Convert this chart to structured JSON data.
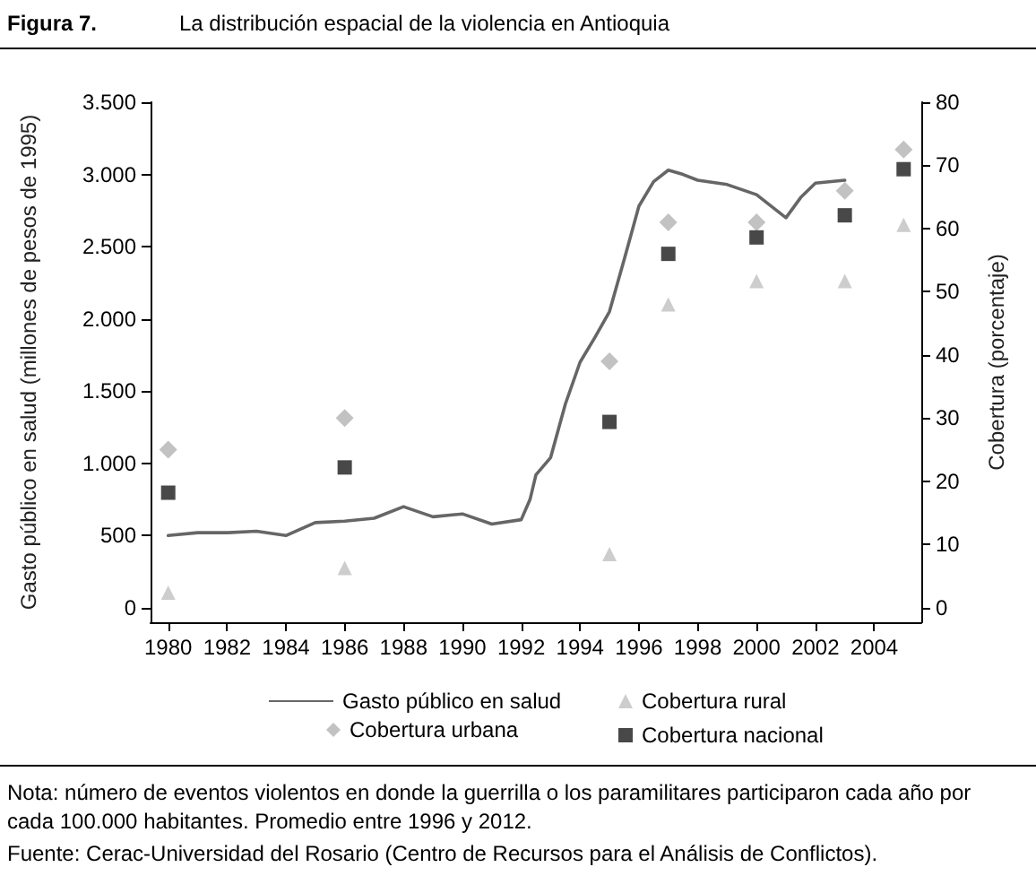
{
  "chart_data": {
    "type": "line",
    "title": "La distribución espacial de la violencia en Antioquia",
    "subtitle": "Figura 7.",
    "ylabel": "Gasto público en salud (millones de pesos de 1995)",
    "y2label": "Cobertura (porcentaje)",
    "annotations": [
      "Nota: número de eventos violentos en donde la guerrilla o los paramilitares participaron cada año por cada 100.000 habitantes. Promedio entre 1996 y 2012.",
      "Fuente: Cerac-Universidad del Rosario (Centro de Recursos para el Análisis de Conflictos)."
    ],
    "xlim": [
      1979.4,
      2005.6
    ],
    "xticks": [
      1980,
      1982,
      1984,
      1986,
      1988,
      1990,
      1992,
      1994,
      1996,
      1998,
      2000,
      2002,
      2004
    ],
    "ylim": [
      -100,
      3500
    ],
    "yticks": [
      {
        "value": 0,
        "label": "0"
      },
      {
        "value": 500,
        "label": "500"
      },
      {
        "value": 1000,
        "label": "1.000"
      },
      {
        "value": 1500,
        "label": "1.500"
      },
      {
        "value": 2000,
        "label": "2.000"
      },
      {
        "value": 2500,
        "label": "2.500"
      },
      {
        "value": 3000,
        "label": "3.000"
      },
      {
        "value": 3500,
        "label": "3.500"
      }
    ],
    "y2lim": [
      -2.3,
      80
    ],
    "y2ticks": [
      0,
      10,
      20,
      30,
      40,
      50,
      60,
      70,
      80
    ],
    "grid": false,
    "legend": "bottom",
    "series": [
      {
        "name": "Gasto público en salud",
        "marker": "none",
        "color": "#666666",
        "x": [
          1980,
          1981,
          1982,
          1983,
          1984,
          1985,
          1986,
          1987,
          1988,
          1989,
          1990,
          1991,
          1992,
          1992.3,
          1992.5,
          1993,
          1993.5,
          1994,
          1994.5,
          1995,
          1995.5,
          1996,
          1996.5,
          1997,
          1997.5,
          1998,
          1999,
          2000,
          2001,
          2001.5,
          2002,
          2003
        ],
        "values": [
          500,
          520,
          520,
          530,
          500,
          590,
          600,
          620,
          700,
          630,
          650,
          580,
          610,
          750,
          920,
          1040,
          1410,
          1700,
          1870,
          2050,
          2410,
          2780,
          2950,
          3030,
          3000,
          2960,
          2930,
          2860,
          2700,
          2840,
          2940,
          2960
        ]
      },
      {
        "name": "Cobertura rural",
        "type": "scatter",
        "marker": "triangle",
        "color": "#c0c0c0",
        "axis": "y2",
        "x": [
          1980,
          1986,
          1995,
          1997,
          2000,
          2003,
          2005
        ],
        "values": [
          2.4,
          6.3,
          8.5,
          48,
          51.7,
          51.7,
          60.6
        ]
      },
      {
        "name": "Cobertura urbana",
        "type": "scatter",
        "marker": "diamond",
        "color": "#b3b3b3",
        "axis": "y2",
        "x": [
          1980,
          1986,
          1995,
          1997,
          2000,
          2003,
          2005
        ],
        "values": [
          25,
          30,
          39,
          61,
          61,
          66,
          72.5
        ]
      },
      {
        "name": "Cobertura nacional",
        "type": "scatter",
        "marker": "square",
        "color": "#1a1a1a",
        "axis": "y2",
        "x": [
          1980,
          1986,
          1995,
          1997,
          2000,
          2003,
          2005
        ],
        "values": [
          18.2,
          22.2,
          29.4,
          56,
          58.6,
          62.1,
          69.4
        ]
      }
    ]
  }
}
